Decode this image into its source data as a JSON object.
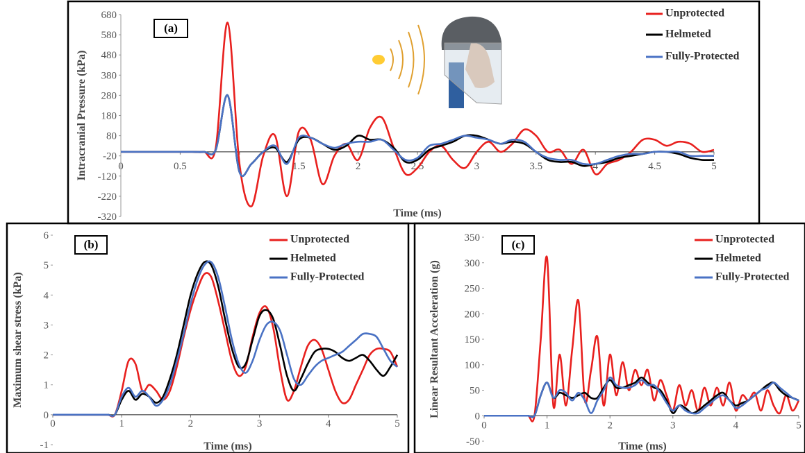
{
  "chart_data": [
    {
      "type": "line",
      "panel_label": "(a)",
      "ylabel": "Intracranial Pressure (kPa)",
      "xlabel": "Time (ms)",
      "x": [
        0,
        0.1,
        0.2,
        0.3,
        0.4,
        0.5,
        0.6,
        0.7,
        0.8,
        0.9,
        1,
        1.1,
        1.2,
        1.3,
        1.4,
        1.5,
        1.6,
        1.7,
        1.8,
        1.9,
        2,
        2.1,
        2.2,
        2.3,
        2.4,
        2.5,
        2.6,
        2.7,
        2.8,
        2.9,
        3,
        3.1,
        3.2,
        3.3,
        3.4,
        3.5,
        3.6,
        3.7,
        3.8,
        3.9,
        4,
        4.1,
        4.2,
        4.3,
        4.4,
        4.5,
        4.6,
        4.7,
        4.8,
        4.9,
        5
      ],
      "series": [
        {
          "name": "Unprotected",
          "color": "#e8201e",
          "values": [
            0,
            0,
            0,
            0,
            0,
            0,
            0,
            0,
            20,
            640,
            -60,
            -270,
            -20,
            80,
            -220,
            100,
            60,
            -160,
            -20,
            40,
            -40,
            120,
            170,
            20,
            -110,
            -80,
            0,
            30,
            -40,
            -80,
            0,
            50,
            0,
            40,
            110,
            80,
            0,
            10,
            -60,
            10,
            -110,
            -60,
            -40,
            0,
            60,
            60,
            30,
            50,
            40,
            0,
            10
          ]
        },
        {
          "name": "Helmeted",
          "color": "#000000",
          "values": [
            0,
            0,
            0,
            0,
            0,
            0,
            0,
            0,
            10,
            280,
            -100,
            -60,
            0,
            20,
            -50,
            60,
            70,
            40,
            10,
            30,
            80,
            60,
            60,
            20,
            -50,
            -40,
            10,
            30,
            50,
            80,
            80,
            60,
            40,
            50,
            40,
            0,
            -40,
            -50,
            -50,
            -70,
            -60,
            -50,
            -30,
            -20,
            -10,
            0,
            0,
            -10,
            -30,
            -40,
            -40
          ]
        },
        {
          "name": "Fully-Protected",
          "color": "#4a72c4",
          "values": [
            0,
            0,
            0,
            0,
            0,
            0,
            0,
            0,
            10,
            280,
            -100,
            -60,
            0,
            30,
            -60,
            70,
            70,
            40,
            20,
            40,
            50,
            50,
            60,
            10,
            -40,
            -30,
            30,
            40,
            60,
            80,
            70,
            60,
            40,
            60,
            50,
            0,
            -30,
            -40,
            -40,
            -60,
            -60,
            -40,
            -20,
            -10,
            -10,
            0,
            0,
            0,
            -20,
            -20,
            -20
          ]
        }
      ],
      "xlim": [
        0,
        5
      ],
      "ylim": [
        -320,
        680
      ],
      "xticks": [
        0,
        0.5,
        1,
        1.5,
        2,
        2.5,
        3,
        3.5,
        4,
        4.5,
        5
      ],
      "yticks": [
        -320,
        -220,
        -120,
        -20,
        80,
        180,
        280,
        380,
        480,
        580,
        680
      ]
    },
    {
      "type": "line",
      "panel_label": "(b)",
      "ylabel": "Maximum shear stress (kPa)",
      "xlabel": "Time (ms)",
      "x": [
        0,
        0.1,
        0.2,
        0.3,
        0.4,
        0.5,
        0.6,
        0.7,
        0.8,
        0.9,
        1,
        1.1,
        1.2,
        1.3,
        1.4,
        1.5,
        1.6,
        1.7,
        1.8,
        1.9,
        2,
        2.1,
        2.2,
        2.3,
        2.4,
        2.5,
        2.6,
        2.7,
        2.8,
        2.9,
        3,
        3.1,
        3.2,
        3.3,
        3.4,
        3.5,
        3.6,
        3.7,
        3.8,
        3.9,
        4,
        4.1,
        4.2,
        4.3,
        4.4,
        4.5,
        4.6,
        4.7,
        4.8,
        4.9,
        5
      ],
      "series": [
        {
          "name": "Unprotected",
          "color": "#e8201e",
          "values": [
            0,
            0,
            0,
            0,
            0,
            0,
            0,
            0,
            0,
            0,
            0.8,
            1.8,
            1.7,
            0.8,
            1.0,
            0.8,
            0.5,
            0.8,
            1.6,
            2.6,
            3.5,
            4.2,
            4.7,
            4.6,
            3.8,
            2.8,
            1.8,
            1.3,
            1.6,
            2.6,
            3.4,
            3.6,
            2.9,
            1.5,
            0.5,
            0.8,
            1.6,
            2.3,
            2.5,
            2.2,
            1.5,
            0.8,
            0.4,
            0.5,
            1.0,
            1.5,
            2.0,
            2.2,
            2.2,
            2.1,
            1.6
          ]
        },
        {
          "name": "Helmeted",
          "color": "#000000",
          "values": [
            0,
            0,
            0,
            0,
            0,
            0,
            0,
            0,
            0,
            0,
            0.5,
            0.8,
            0.5,
            0.7,
            0.6,
            0.4,
            0.6,
            1.2,
            2.0,
            3.0,
            4.0,
            4.7,
            5.1,
            5.0,
            4.3,
            3.2,
            2.2,
            1.6,
            1.7,
            2.5,
            3.3,
            3.5,
            3.2,
            2.3,
            1.3,
            0.8,
            1.2,
            1.7,
            2.1,
            2.2,
            2.2,
            2.1,
            1.9,
            1.8,
            1.9,
            2.0,
            1.8,
            1.5,
            1.3,
            1.6,
            2.0
          ]
        },
        {
          "name": "Fully-Protected",
          "color": "#4a72c4",
          "values": [
            0,
            0,
            0,
            0,
            0,
            0,
            0,
            0,
            0,
            0,
            0.6,
            0.9,
            0.6,
            0.8,
            0.6,
            0.3,
            0.5,
            1.0,
            1.8,
            2.7,
            3.7,
            4.5,
            5.0,
            5.1,
            4.6,
            3.6,
            2.5,
            1.7,
            1.4,
            1.8,
            2.5,
            3.0,
            3.1,
            2.8,
            2.0,
            1.2,
            1.0,
            1.3,
            1.6,
            1.8,
            1.9,
            2.0,
            2.1,
            2.3,
            2.5,
            2.7,
            2.7,
            2.6,
            2.2,
            1.8,
            1.6
          ]
        }
      ],
      "xlim": [
        0,
        5
      ],
      "ylim": [
        -1,
        6
      ],
      "xticks": [
        0,
        1,
        2,
        3,
        4,
        5
      ],
      "yticks": [
        -1,
        0,
        1,
        2,
        3,
        4,
        5,
        6
      ]
    },
    {
      "type": "line",
      "panel_label": "(c)",
      "ylabel": "Linear Resultant Acceleration (g)",
      "xlabel": "Time (ms)",
      "x": [
        0,
        0.1,
        0.2,
        0.3,
        0.4,
        0.5,
        0.6,
        0.7,
        0.8,
        0.9,
        1,
        1.1,
        1.2,
        1.3,
        1.4,
        1.5,
        1.6,
        1.7,
        1.8,
        1.9,
        2,
        2.1,
        2.2,
        2.3,
        2.4,
        2.5,
        2.6,
        2.7,
        2.8,
        2.9,
        3,
        3.1,
        3.2,
        3.3,
        3.4,
        3.5,
        3.6,
        3.7,
        3.8,
        3.9,
        4,
        4.1,
        4.2,
        4.3,
        4.4,
        4.5,
        4.6,
        4.7,
        4.8,
        4.9,
        5
      ],
      "series": [
        {
          "name": "Unprotected",
          "color": "#e8201e",
          "values": [
            0,
            0,
            0,
            0,
            0,
            0,
            0,
            0,
            0,
            150,
            310,
            20,
            120,
            20,
            130,
            225,
            30,
            90,
            155,
            20,
            120,
            40,
            105,
            50,
            90,
            60,
            90,
            30,
            70,
            40,
            10,
            60,
            20,
            50,
            10,
            55,
            20,
            55,
            20,
            65,
            10,
            40,
            30,
            45,
            10,
            50,
            20,
            5,
            40,
            10,
            30
          ]
        },
        {
          "name": "Helmeted",
          "color": "#000000",
          "values": [
            0,
            0,
            0,
            0,
            0,
            0,
            0,
            0,
            0,
            40,
            65,
            35,
            45,
            40,
            35,
            40,
            45,
            35,
            35,
            55,
            70,
            55,
            55,
            60,
            65,
            75,
            65,
            55,
            50,
            30,
            5,
            20,
            15,
            5,
            10,
            20,
            30,
            40,
            45,
            30,
            20,
            25,
            30,
            40,
            50,
            60,
            65,
            50,
            40,
            35,
            30
          ]
        },
        {
          "name": "Fully-Protected",
          "color": "#4a72c4",
          "values": [
            0,
            0,
            0,
            0,
            0,
            0,
            0,
            0,
            0,
            40,
            65,
            35,
            50,
            45,
            30,
            45,
            30,
            5,
            30,
            50,
            75,
            60,
            55,
            55,
            60,
            70,
            60,
            60,
            45,
            25,
            10,
            20,
            10,
            5,
            5,
            15,
            25,
            35,
            40,
            30,
            15,
            20,
            30,
            40,
            50,
            55,
            65,
            55,
            45,
            35,
            30
          ]
        }
      ],
      "xlim": [
        0,
        5
      ],
      "ylim": [
        -50,
        350
      ],
      "xticks": [
        0,
        1,
        2,
        3,
        4,
        5
      ],
      "yticks": [
        -50,
        0,
        50,
        100,
        150,
        200,
        250,
        300,
        350
      ]
    }
  ]
}
